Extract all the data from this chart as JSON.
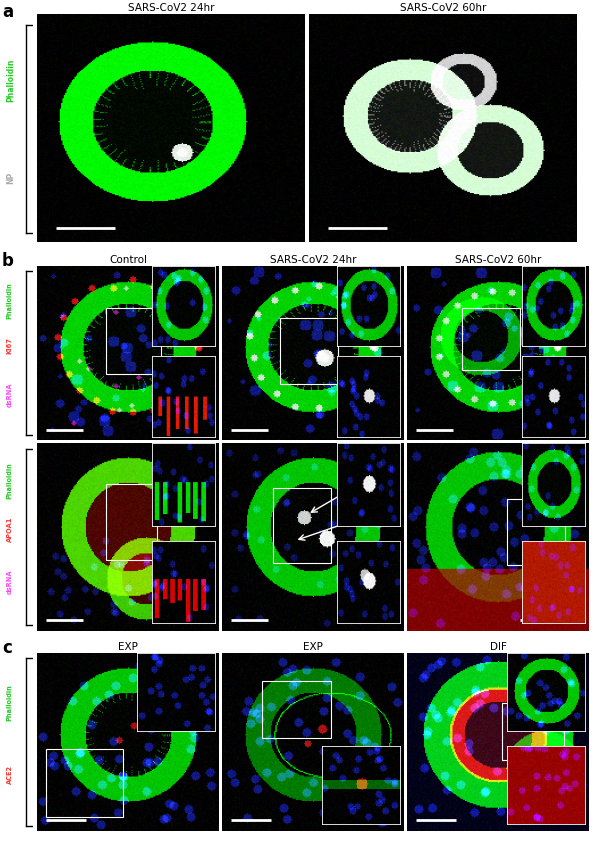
{
  "panel_a_title_left": "SARS-CoV2 24hr",
  "panel_a_title_right": "SARS-CoV2 60hr",
  "panel_b_titles": [
    "Control",
    "SARS-CoV2 24hr",
    "SARS-CoV2 60hr"
  ],
  "panel_c_titles": [
    "EXP",
    "EXP",
    "DIF"
  ],
  "label_a": "a",
  "label_b": "b",
  "label_c": "c",
  "bg_color": "#ffffff",
  "title_fontsize": 7.5,
  "label_fontsize": 12,
  "ylab_fontsize": 5.5,
  "scalebar_color": "#ffffff"
}
